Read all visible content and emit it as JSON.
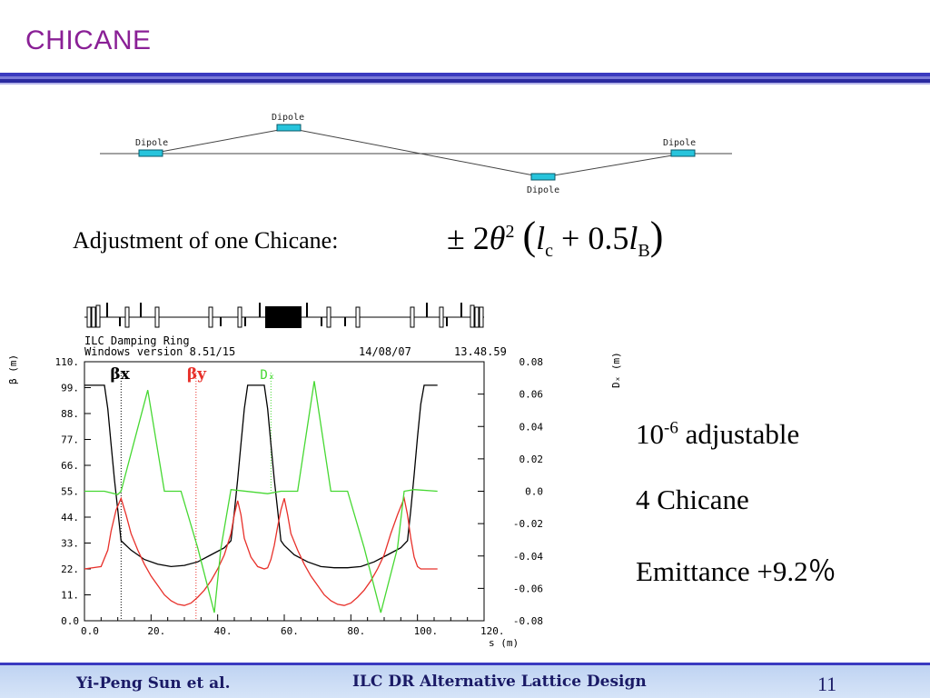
{
  "title": "CHICANE",
  "schematic": {
    "dipole_labels": [
      "Dipole",
      "Dipole",
      "Dipole",
      "Dipole"
    ],
    "magnet_color": "#27c4dc"
  },
  "adjustment": {
    "label": "Adjustment of one Chicane:",
    "formula": {
      "prefix": "± 2",
      "theta": "θ",
      "exp": "2",
      "open": "(",
      "l1": "l",
      "sub1": "c",
      "plus": "+ 0.5",
      "l2": "l",
      "sub2": "B",
      "close": ")"
    }
  },
  "notes": {
    "adjust_base": "10",
    "adjust_exp": "-6",
    "adjust_rest": " adjustable",
    "chicane_count": "4 Chicane",
    "emittance": "Emittance +9.2％"
  },
  "footer": {
    "author": "Yi-Peng Sun et al.",
    "center": "ILC DR Alternative Lattice Design",
    "page": "11"
  },
  "chart_data": {
    "type": "line",
    "header_line1": "ILC Damping Ring",
    "header_line2": "Windows version 8.51/15",
    "date": "14/08/07",
    "time": "13.48.59",
    "xlabel": "s  (m)",
    "ylabel_left": "β  (m)",
    "ylabel_right": "Dₓ (m)",
    "xlim": [
      0,
      120
    ],
    "ylim_left": [
      0,
      110
    ],
    "ylim_right": [
      -0.08,
      0.08
    ],
    "x_ticks": [
      "0.0",
      "20.",
      "40.",
      "60.",
      "80.",
      "100.",
      "120."
    ],
    "y_ticks_left": [
      "0.0",
      "11.",
      "22.",
      "33.",
      "44.",
      "55.",
      "66.",
      "77.",
      "88.",
      "99.",
      "110."
    ],
    "y_ticks_right": [
      "-0.08",
      "-0.06",
      "-0.04",
      "-0.02",
      "0.0",
      "0.02",
      "0.04",
      "0.06",
      "0.08"
    ],
    "series": [
      {
        "name": "βx",
        "axis": "left",
        "color": "#000000",
        "marker_x": 11,
        "x": [
          0,
          6,
          7,
          8,
          9,
          10,
          11,
          14,
          18,
          22,
          26,
          30,
          34,
          38,
          42,
          44,
          45,
          46,
          47,
          48,
          49,
          52,
          54,
          55,
          56,
          57,
          58,
          59,
          60,
          63,
          67,
          71,
          75,
          79,
          83,
          87,
          91,
          95,
          97,
          98,
          99,
          100,
          101,
          102,
          106
        ],
        "y": [
          100,
          100,
          90,
          75,
          60,
          47,
          34,
          30,
          26,
          24,
          23,
          23.5,
          25,
          28,
          31,
          34,
          46,
          60,
          75,
          90,
          100,
          100,
          100,
          90,
          75,
          60,
          47,
          34,
          32,
          28,
          25,
          23,
          22.5,
          22.5,
          23,
          25,
          28,
          31,
          34,
          47,
          62,
          78,
          92,
          100,
          100
        ]
      },
      {
        "name": "βy",
        "axis": "left",
        "color": "#e8302a",
        "marker_x": 33.5,
        "x": [
          0,
          5,
          7,
          8,
          9.5,
          11,
          12.5,
          14,
          16,
          18,
          20,
          22,
          24,
          26,
          28,
          30,
          32,
          34,
          36,
          38,
          40,
          42,
          44,
          45,
          46,
          47,
          48,
          50,
          52,
          54,
          55,
          56,
          57,
          58,
          59,
          60,
          61,
          62,
          64,
          66,
          68,
          70,
          72,
          74,
          76,
          78,
          80,
          82,
          84,
          86,
          88,
          90,
          92,
          94,
          96,
          97,
          98,
          99,
          100,
          101,
          102,
          106
        ],
        "y": [
          22,
          23,
          30,
          38,
          47,
          52,
          45,
          37,
          30,
          24,
          19,
          15,
          11,
          8.5,
          7,
          6.5,
          7.5,
          10,
          13,
          17,
          22,
          28,
          37,
          45,
          51,
          45,
          35,
          27,
          23,
          22,
          22.5,
          26,
          32,
          40,
          47,
          52,
          45,
          37,
          30,
          24,
          19,
          15,
          11,
          8.5,
          7,
          6.5,
          7.5,
          10,
          13,
          17,
          22,
          28,
          37,
          45,
          52,
          45,
          35,
          27,
          23,
          22,
          22,
          22
        ]
      },
      {
        "name": "Dₓ",
        "axis": "right",
        "color": "#46d832",
        "marker_x": 56,
        "x": [
          0,
          6,
          10,
          11,
          19,
          24,
          29,
          34,
          39,
          41,
          44,
          55,
          59,
          64,
          69,
          74,
          79,
          84,
          89,
          94,
          96,
          99,
          106
        ],
        "y": [
          0.0,
          0.0,
          -0.002,
          0.0,
          0.0625,
          0.0,
          0.0,
          -0.035,
          -0.075,
          -0.035,
          0.001,
          -0.0015,
          0.0,
          0.0,
          0.068,
          0.0,
          0.0,
          -0.035,
          -0.075,
          -0.035,
          0.0,
          0.001,
          0.0
        ]
      }
    ]
  }
}
